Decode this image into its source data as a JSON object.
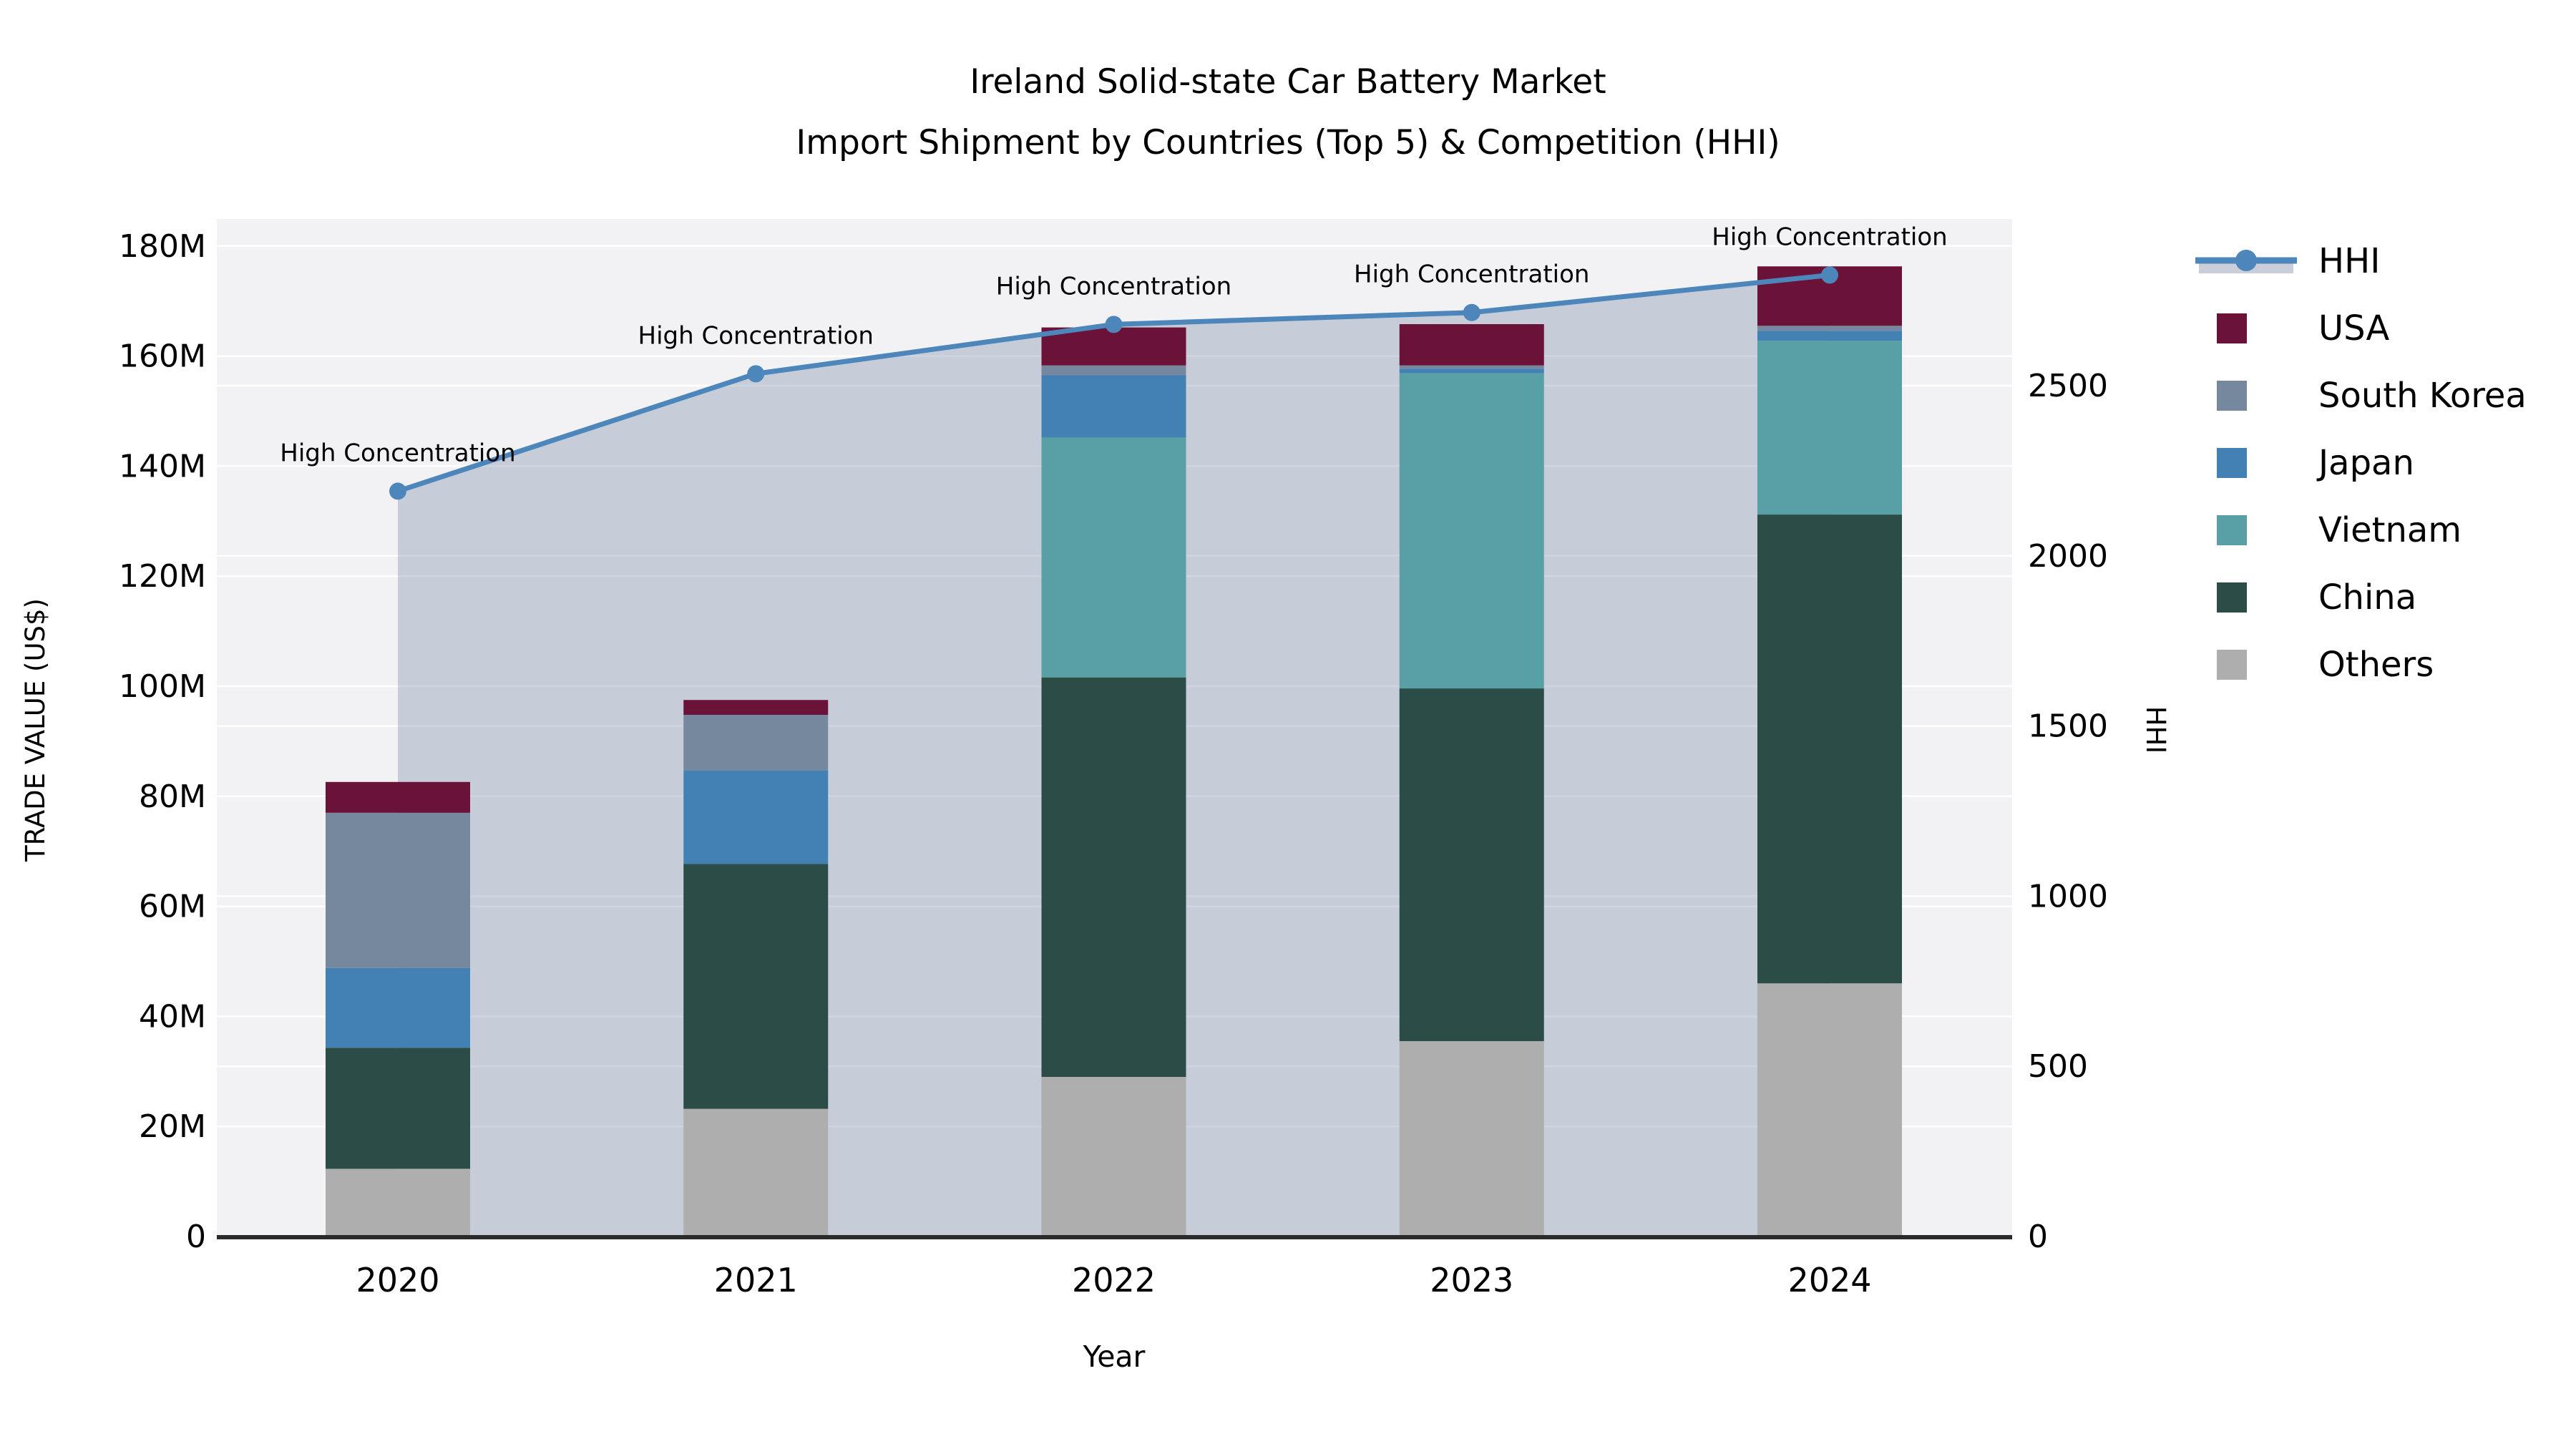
{
  "title": {
    "line1": "Ireland Solid-state Car Battery Market",
    "line2": "Import Shipment by Countries (Top 5) & Competition (HHI)"
  },
  "axes": {
    "y_left": {
      "label": "TRADE VALUE (US$)",
      "ticks": [
        "0",
        "20M",
        "40M",
        "60M",
        "80M",
        "100M",
        "120M",
        "140M",
        "160M",
        "180M"
      ],
      "tick_values_m": [
        0,
        20,
        40,
        60,
        80,
        100,
        120,
        140,
        160,
        180
      ]
    },
    "y_right": {
      "label": "HHI",
      "ticks": [
        "0",
        "500",
        "1000",
        "1500",
        "2000",
        "2500"
      ],
      "tick_values": [
        0,
        500,
        1000,
        1500,
        2000,
        2500
      ]
    },
    "x": {
      "label": "Year"
    }
  },
  "legend": {
    "items": [
      {
        "label": "HHI",
        "type": "line"
      },
      {
        "label": "USA",
        "type": "patch",
        "color": "#6a1238"
      },
      {
        "label": "South Korea",
        "type": "patch",
        "color": "#76889d"
      },
      {
        "label": "Japan",
        "type": "patch",
        "color": "#4380b4"
      },
      {
        "label": "Vietnam",
        "type": "patch",
        "color": "#58a0a5"
      },
      {
        "label": "China",
        "type": "patch",
        "color": "#2c4c48"
      },
      {
        "label": "Others",
        "type": "patch",
        "color": "#aeaeae"
      }
    ]
  },
  "colors": {
    "hhi_line": "#4d86ba",
    "hhi_area_fill": "#7e8ca8",
    "hhi_area_opacity": 0.37,
    "hhi_legend_band": "#c9ced9",
    "plot_background": "#f2f2f4",
    "gridline": "#ffffff",
    "axis_line": "#2b2b2b",
    "annotation_text": "#111111"
  },
  "chart_data": {
    "type": "bar",
    "subtype": "stacked-bars-with-line-overlay",
    "title": "Ireland Solid-state Car Battery Market — Import Shipment by Countries (Top 5) & Competition (HHI)",
    "xlabel": "Year",
    "ylabel_left": "TRADE VALUE (US$)",
    "ylabel_right": "HHI",
    "unit": "million US$",
    "categories": [
      "2020",
      "2021",
      "2022",
      "2023",
      "2024"
    ],
    "stack_order_bottom_to_top": [
      "Others",
      "China",
      "Vietnam",
      "Japan",
      "South Korea",
      "USA"
    ],
    "series": [
      {
        "name": "USA",
        "color": "#6a1238",
        "values": [
          5.6,
          2.7,
          6.9,
          7.5,
          10.8
        ]
      },
      {
        "name": "South Korea",
        "color": "#76889d",
        "values": [
          28.2,
          10.1,
          1.8,
          0.6,
          0.9
        ]
      },
      {
        "name": "Japan",
        "color": "#4380b4",
        "values": [
          14.5,
          17.0,
          11.3,
          0.8,
          1.8
        ]
      },
      {
        "name": "Vietnam",
        "color": "#58a0a5",
        "values": [
          0,
          0,
          43.6,
          57.3,
          31.6
        ]
      },
      {
        "name": "China",
        "color": "#2c4c48",
        "values": [
          22.0,
          44.5,
          72.6,
          64.1,
          85.2
        ]
      },
      {
        "name": "Others",
        "color": "#aeaeae",
        "values": [
          12.3,
          23.2,
          29.0,
          35.5,
          46.0
        ]
      }
    ],
    "bar_totals": [
      82.6,
      97.5,
      165.2,
      165.8,
      176.3
    ],
    "line_series": {
      "name": "HHI",
      "axis": "right",
      "color": "#4d86ba",
      "area_fill": true,
      "values": [
        2190,
        2535,
        2680,
        2715,
        2825
      ],
      "annotations": [
        "High Concentration",
        "High Concentration",
        "High Concentration",
        "High Concentration",
        "High Concentration"
      ]
    },
    "ylim_left_m": [
      0,
      185
    ],
    "ylim_right": [
      0,
      2910
    ],
    "grid": true,
    "legend_position": "right"
  }
}
